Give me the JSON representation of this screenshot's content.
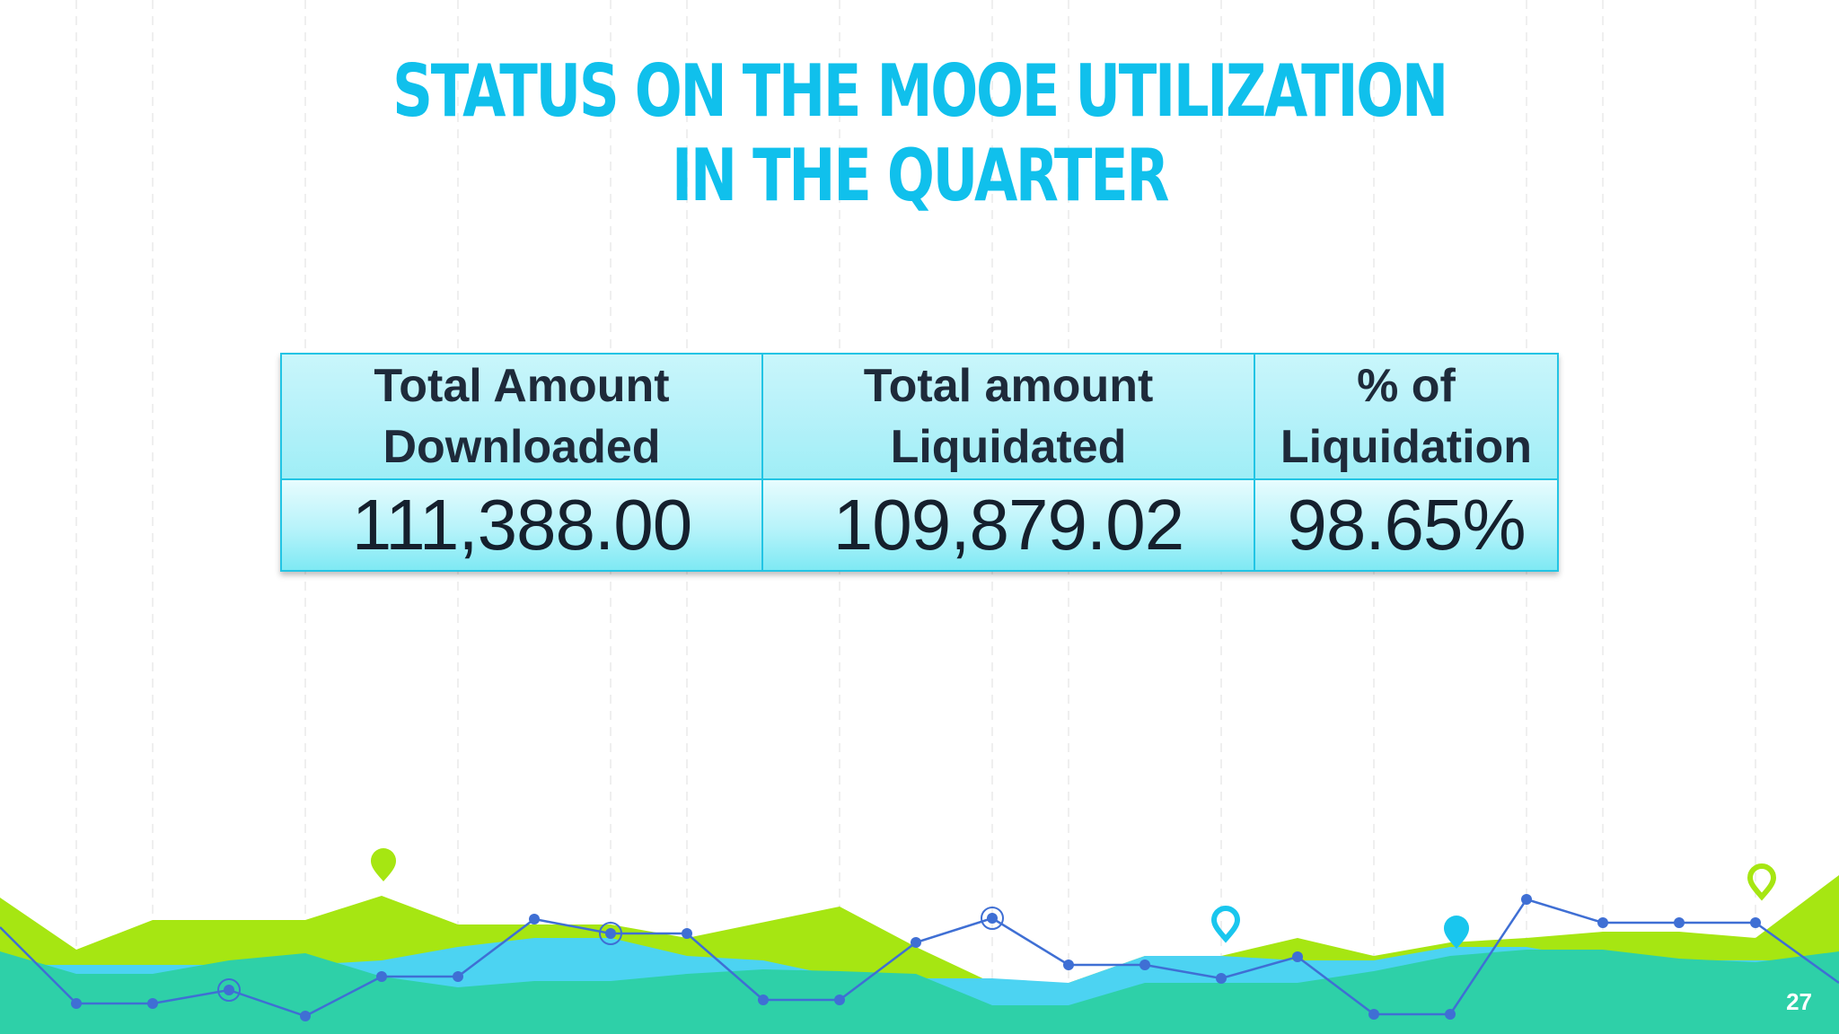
{
  "slide": {
    "title_line1": "STATUS ON THE MOOE UTILIZATION",
    "title_line2": "IN THE QUARTER",
    "page_number": "27"
  },
  "table": {
    "headers": [
      {
        "line1": "Total Amount",
        "line2": "Downloaded"
      },
      {
        "line1": "Total amount",
        "line2": "Liquidated"
      },
      {
        "line1": "% of",
        "line2": "Liquidation"
      }
    ],
    "values": [
      "111,388.00",
      "109,879.02",
      "98.65%"
    ]
  },
  "colors": {
    "title": "#10c0ec",
    "table_border": "#22c4e4",
    "lime": "#a6e612",
    "teal": "#2ed0a8",
    "sky": "#4cd3f2",
    "line_blue": "#3f6fd4"
  }
}
